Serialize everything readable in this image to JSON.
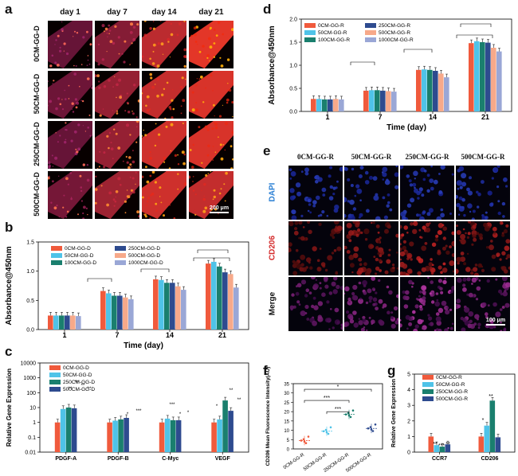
{
  "panels": {
    "a": {
      "letter": "a",
      "col_labels": [
        "day 1",
        "day 7",
        "day 14",
        "day 21"
      ],
      "row_labels": [
        "0CM-GG-D",
        "50CM-GG-D",
        "250CM-GG-D",
        "500CM-GG-D"
      ],
      "scale_bar": "200 μm",
      "intensity": [
        [
          0.25,
          0.45,
          0.75,
          0.95
        ],
        [
          0.3,
          0.55,
          0.8,
          0.9
        ],
        [
          0.25,
          0.55,
          0.85,
          0.9
        ],
        [
          0.35,
          0.6,
          0.85,
          0.8
        ]
      ]
    },
    "e": {
      "letter": "e",
      "col_labels": [
        "0CM-GG-R",
        "50CM-GG-R",
        "250CM-GG-R",
        "500CM-GG-R"
      ],
      "row_labels": [
        "DAPI",
        "CD206",
        "Merge"
      ],
      "row_colors": [
        "#2a7fd4",
        "#d42a2a",
        "#111111"
      ],
      "scale_bar": "100 μm"
    }
  },
  "colors": {
    "c0": "#f05a3c",
    "c50": "#4fc3e8",
    "c100": "#1a7f6e",
    "c250": "#2e4b8f",
    "c500": "#f7a98a",
    "c1000": "#9aa7d6"
  },
  "chart_data": [
    {
      "id": "d",
      "letter": "d",
      "type": "bar",
      "categories": [
        "1",
        "7",
        "14",
        "21"
      ],
      "xlabel": "Time (day)",
      "ylabel": "Absorbance@450nm",
      "ylim": [
        0,
        2.0
      ],
      "yticks": [
        "0.0",
        "0.5",
        "1.0",
        "1.5",
        "2.0"
      ],
      "series": [
        {
          "name": "0CM-GG-R",
          "color": "#f05a3c",
          "values": [
            0.27,
            0.45,
            0.9,
            1.48
          ]
        },
        {
          "name": "50CM-GG-R",
          "color": "#4fc3e8",
          "values": [
            0.27,
            0.46,
            0.91,
            1.52
          ]
        },
        {
          "name": "100CM-GG-R",
          "color": "#1a7f6e",
          "values": [
            0.26,
            0.46,
            0.9,
            1.5
          ]
        },
        {
          "name": "250CM-GG-R",
          "color": "#2e4b8f",
          "values": [
            0.26,
            0.45,
            0.88,
            1.49
          ]
        },
        {
          "name": "500CM-GG-R",
          "color": "#f7a98a",
          "values": [
            0.27,
            0.44,
            0.82,
            1.38
          ]
        },
        {
          "name": "1000CM-GG-R",
          "color": "#9aa7d6",
          "values": [
            0.26,
            0.43,
            0.74,
            1.3
          ]
        }
      ],
      "legend": "top-left"
    },
    {
      "id": "b",
      "letter": "b",
      "type": "bar",
      "categories": [
        "1",
        "7",
        "14",
        "21"
      ],
      "xlabel": "Time (day)",
      "ylabel": "Absorbance@450nm",
      "ylim": [
        0,
        1.5
      ],
      "yticks": [
        "0.0",
        "0.5",
        "1.0",
        "1.5"
      ],
      "series": [
        {
          "name": "0CM-GG-D",
          "color": "#f05a3c",
          "values": [
            0.24,
            0.66,
            0.86,
            1.13
          ]
        },
        {
          "name": "50CM-GG-D",
          "color": "#4fc3e8",
          "values": [
            0.24,
            0.62,
            0.85,
            1.16
          ]
        },
        {
          "name": "100CM-GG-D",
          "color": "#1a7f6e",
          "values": [
            0.24,
            0.58,
            0.8,
            1.08
          ]
        },
        {
          "name": "250CM-GG-D",
          "color": "#2e4b8f",
          "values": [
            0.24,
            0.58,
            0.8,
            0.98
          ]
        },
        {
          "name": "500CM-GG-D",
          "color": "#f7a98a",
          "values": [
            0.24,
            0.55,
            0.74,
            0.95
          ]
        },
        {
          "name": "1000CM-GG-D",
          "color": "#9aa7d6",
          "values": [
            0.23,
            0.52,
            0.68,
            0.72
          ]
        }
      ],
      "legend": "top-left"
    },
    {
      "id": "c",
      "letter": "c",
      "type": "bar",
      "log_scale": true,
      "categories": [
        "PDGF-A",
        "PDGF-B",
        "C-Myc",
        "VEGF"
      ],
      "xlabel": "",
      "ylabel": "Relative Gene Expression",
      "ylim": [
        0.01,
        10000
      ],
      "yticks": [
        "0.01",
        "0.1",
        "1",
        "10",
        "100",
        "1000",
        "10000"
      ],
      "series": [
        {
          "name": "0CM-GG-D",
          "color": "#f05a3c",
          "values": [
            1,
            1,
            1,
            1
          ]
        },
        {
          "name": "50CM-GG-D",
          "color": "#4fc3e8",
          "values": [
            8,
            1.3,
            1.8,
            1.6
          ]
        },
        {
          "name": "250CM-GG-D",
          "color": "#1a7f6e",
          "values": [
            10,
            1.6,
            1.4,
            30
          ]
        },
        {
          "name": "500CM-GG-D",
          "color": "#2e4b8f",
          "values": [
            9,
            2,
            1.4,
            6
          ]
        }
      ],
      "significance": [
        "**",
        "**",
        "**",
        "**",
        "*",
        "***",
        "***",
        "*",
        "*",
        "*",
        "**",
        "**"
      ],
      "legend": "top-left"
    },
    {
      "id": "f",
      "letter": "f",
      "type": "scatter",
      "categories": [
        "0CM-GG-R",
        "50CM-GG-R",
        "250CM-GG-R",
        "500CM-GG-R"
      ],
      "ylabel": "CD206 Mean Fluorescence Intensity(AU)",
      "ylim": [
        0,
        35
      ],
      "yticks": [
        "0",
        "5",
        "10",
        "15",
        "20",
        "25",
        "30",
        "35"
      ],
      "series": [
        {
          "name": "0CM-GG-R",
          "color": "#f05a3c",
          "values": [
            4.5
          ]
        },
        {
          "name": "50CM-GG-R",
          "color": "#4fc3e8",
          "values": [
            9.5
          ]
        },
        {
          "name": "250CM-GG-R",
          "color": "#1a7f6e",
          "values": [
            18.5
          ]
        },
        {
          "name": "500CM-GG-R",
          "color": "#2e4b8f",
          "values": [
            11
          ]
        }
      ],
      "significance": [
        "*",
        "***",
        "***"
      ]
    },
    {
      "id": "g",
      "letter": "g",
      "type": "bar",
      "categories": [
        "CCR7",
        "CD206"
      ],
      "xlabel": "",
      "ylabel": "Relative Gene Expression",
      "ylim": [
        0,
        5
      ],
      "yticks": [
        "0",
        "1",
        "2",
        "3",
        "4",
        "5"
      ],
      "series": [
        {
          "name": "0CM-GG-R",
          "color": "#f05a3c",
          "values": [
            1.0,
            1.0
          ]
        },
        {
          "name": "50CM-GG-R",
          "color": "#4fc3e8",
          "values": [
            0.45,
            1.7
          ]
        },
        {
          "name": "250CM-GG-R",
          "color": "#1a7f6e",
          "values": [
            0.35,
            3.3
          ]
        },
        {
          "name": "500CM-GG-R",
          "color": "#2e4b8f",
          "values": [
            0.5,
            0.95
          ]
        }
      ],
      "significance": [
        "**",
        "***",
        "**",
        "*",
        "**"
      ],
      "legend": "top-left"
    }
  ]
}
